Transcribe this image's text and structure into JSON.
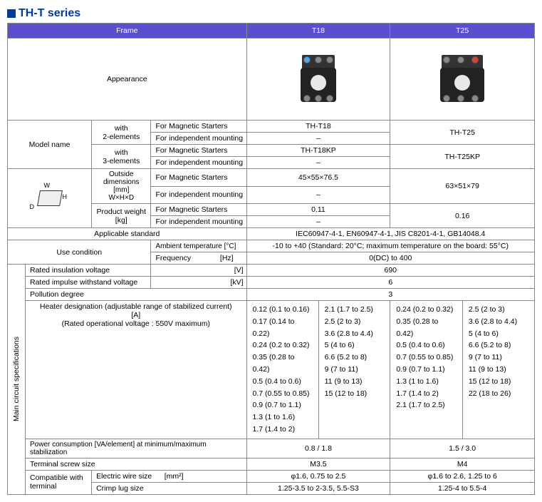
{
  "title": "TH-T series",
  "headers": {
    "frame": "Frame",
    "t18": "T18",
    "t25": "T25"
  },
  "rows": {
    "appearance": "Appearance",
    "model_name": "Model name",
    "with2": "with\n2-elements",
    "with3": "with\n3-elements",
    "for_mag": "For Magnetic Starters",
    "for_ind": "For independent mounting",
    "t18_mag": "TH-T18",
    "t18_ind": "–",
    "t18kp_mag": "TH-T18KP",
    "t18kp_ind": "–",
    "t25": "TH-T25",
    "t25kp": "TH-T25KP",
    "outside_dim": "Outside dimensions [mm]\nW×H×D",
    "dim_t18_mag": "45×55×76.5",
    "dim_t18_ind": "–",
    "dim_t25": "63×51×79",
    "weight": "Product weight\n[kg]",
    "weight_t18_mag": "0.11",
    "weight_t18_ind": "–",
    "weight_t25": "0.16",
    "appl_std": "Applicable standard",
    "appl_std_val": "IEC60947-4-1, EN60947-4-1, JIS C8201-4-1, GB14048.4",
    "use_cond": "Use condition",
    "ambient": "Ambient temperature [°C]",
    "ambient_val": "-10 to +40 (Standard: 20°C; maximum temperature on the board: 55°C)",
    "freq": "Frequency              [Hz]",
    "freq_val": "0(DC) to 400",
    "main_label": "Main circuit specifications",
    "riv": "Rated insulation voltage",
    "riv_unit": "[V]",
    "riv_val": "690",
    "riwv": "Rated impulse withstand voltage",
    "riwv_unit": "[kV]",
    "riwv_val": "6",
    "pd": "Pollution degree",
    "pd_val": "3",
    "heater_label": "Heater designation (adjustable range of stabilized current)\n[A]\n(Rated operational voltage : 550V maximum)",
    "t18_h1": [
      "0.12 (0.1 to 0.16)",
      "0.17 (0.14 to 0.22)",
      "0.24 (0.2 to 0.32)",
      "0.35 (0.28 to 0.42)",
      "0.5 (0.4 to 0.6)",
      "0.7 (0.55 to 0.85)",
      "0.9 (0.7 to 1.1)",
      "1.3 (1 to 1.6)",
      "1.7 (1.4 to 2)"
    ],
    "t18_h2": [
      "2.1 (1.7 to 2.5)",
      "2.5 (2 to 3)",
      "3.6 (2.8 to 4.4)",
      "5 (4 to 6)",
      "6.6 (5.2 to 8)",
      "9 (7 to 11)",
      "11 (9 to 13)",
      "15 (12 to 18)",
      ""
    ],
    "t25_h1": [
      "0.24 (0.2 to 0.32)",
      "0.35 (0.28 to 0.42)",
      "0.5 (0.4 to 0.6)",
      "0.7 (0.55 to 0.85)",
      "0.9 (0.7 to 1.1)",
      "1.3 (1 to 1.6)",
      "1.7 (1.4 to 2)",
      "2.1 (1.7 to 2.5)",
      ""
    ],
    "t25_h2": [
      "2.5 (2 to 3)",
      "3.6 (2.8 to 4.4)",
      "5 (4 to 6)",
      "6.6 (5.2 to 8)",
      "9 (7 to 11)",
      "11 (9 to 13)",
      "15 (12 to 18)",
      "22 (18 to 26)",
      ""
    ],
    "power": "Power consumption [VA/element] at minimum/maximum stabilization",
    "power_t18": "0.8 / 1.8",
    "power_t25": "1.5 / 3.0",
    "tscrew": "Terminal screw size",
    "tscrew_t18": "M3.5",
    "tscrew_t25": "M4",
    "compat": "Compatible with terminal",
    "ewire": "Electric wire size      [mm²]",
    "ewire_t18": "φ1.6, 0.75 to 2.5",
    "ewire_t25": "φ1.6 to 2.6, 1.25 to 6",
    "crimp": "Crimp lug size",
    "crimp_t18": "1.25-3.5 to 2-3.5, 5.5-S3",
    "crimp_t25": "1.25-4 to 5.5-4",
    "dim_w": "W",
    "dim_h": "H",
    "dim_d": "D"
  }
}
